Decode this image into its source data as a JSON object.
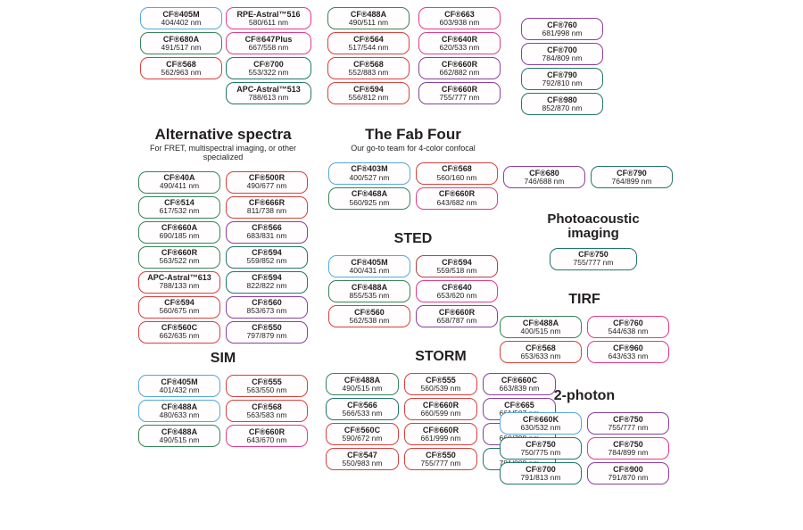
{
  "palette": {
    "blue": "#55a7dd",
    "green": "#37845a",
    "teal": "#22776b",
    "red": "#d8403c",
    "magenta": "#e23a8e",
    "purple": "#8a3f9e",
    "darkred": "#b04040",
    "text": "#231f20",
    "background": "#ffffff"
  },
  "sections": [
    {
      "id": "top_col_1",
      "title": "",
      "subtitle": "",
      "boxes": [
        {
          "name": "CF®405M",
          "value": "404/402 nm",
          "color": "blue"
        },
        {
          "name": "CF®680A",
          "value": "491/517 nm",
          "color": "green"
        },
        {
          "name": "CF®568",
          "value": "562/963 nm",
          "color": "red"
        }
      ]
    },
    {
      "id": "top_col_2",
      "title": "",
      "subtitle": "",
      "boxes": [
        {
          "name": "RPE-Astral™516",
          "value": "580/611 nm",
          "color": "magenta"
        },
        {
          "name": "CF®647Plus",
          "value": "667/558 nm",
          "color": "magenta"
        },
        {
          "name": "CF®700",
          "value": "553/322 nm",
          "color": "teal"
        },
        {
          "name": "APC-Astral™513",
          "value": "788/613 nm",
          "color": "teal"
        }
      ]
    },
    {
      "id": "top_col_3",
      "title": "",
      "subtitle": "",
      "boxes": [
        {
          "name": "CF®488A",
          "value": "490/511 nm",
          "color": "green"
        },
        {
          "name": "CF®564",
          "value": "517/544 nm",
          "color": "red"
        },
        {
          "name": "CF®568",
          "value": "552/883 nm",
          "color": "red"
        },
        {
          "name": "CF®594",
          "value": "556/812 nm",
          "color": "red"
        }
      ]
    },
    {
      "id": "top_col_4",
      "title": "",
      "subtitle": "",
      "boxes": [
        {
          "name": "CF®663",
          "value": "603/938 nm",
          "color": "magenta"
        },
        {
          "name": "CF®640R",
          "value": "620/533 nm",
          "color": "magenta"
        },
        {
          "name": "CF®660R",
          "value": "662/882 nm",
          "color": "purple"
        },
        {
          "name": "CF®660R",
          "value": "755/777 nm",
          "color": "purple"
        }
      ]
    },
    {
      "id": "top_col_5",
      "title": "",
      "subtitle": "",
      "boxes": [
        {
          "name": "CF®760",
          "value": "681/998 nm",
          "color": "purple"
        },
        {
          "name": "CF®700",
          "value": "784/809 nm",
          "color": "purple"
        },
        {
          "name": "CF®790",
          "value": "792/810 nm",
          "color": "teal"
        },
        {
          "name": "CF®980",
          "value": "852/870 nm",
          "color": "teal"
        }
      ]
    },
    {
      "id": "alt_spectra",
      "title": "Alternative spectra",
      "subtitle": "For FRET, multispectral imaging, or other specialized",
      "boxes": [
        {
          "name": "CF®40A",
          "value": "490/411 nm",
          "color": "green"
        },
        {
          "name": "CF®500R",
          "value": "490/677 nm",
          "color": "red"
        },
        {
          "name": "CF®514",
          "value": "617/532 nm",
          "color": "green"
        },
        {
          "name": "CF®666R",
          "value": "811/738 nm",
          "color": "red"
        },
        {
          "name": "CF®660A",
          "value": "690/185 nm",
          "color": "green"
        },
        {
          "name": "CF®566",
          "value": "683/831 nm",
          "color": "purple"
        },
        {
          "name": "CF®660R",
          "value": "563/522 nm",
          "color": "green"
        },
        {
          "name": "CF®594",
          "value": "559/852 nm",
          "color": "teal"
        },
        {
          "name": "APC-Astral™613",
          "value": "788/133 nm",
          "color": "red"
        },
        {
          "name": "CF®594",
          "value": "822/822 nm",
          "color": "teal"
        },
        {
          "name": "CF®594",
          "value": "560/675 nm",
          "color": "red"
        },
        {
          "name": "CF®560",
          "value": "853/673 nm",
          "color": "purple"
        },
        {
          "name": "CF®560C",
          "value": "662/635 nm",
          "color": "red"
        },
        {
          "name": "CF®550",
          "value": "797/879 nm",
          "color": "purple"
        }
      ]
    },
    {
      "id": "fab_four",
      "title": "The Fab Four",
      "subtitle": "Our go-to team for 4-color confocal",
      "boxes": [
        {
          "name": "CF®403M",
          "value": "400/527 nm",
          "color": "blue"
        },
        {
          "name": "CF®568",
          "value": "560/160 nm",
          "color": "red"
        },
        {
          "name": "CF®468A",
          "value": "560/925 nm",
          "color": "green"
        },
        {
          "name": "CF®660R",
          "value": "643/682 nm",
          "color": "magenta"
        }
      ]
    },
    {
      "id": "sted",
      "title": "STED",
      "subtitle": "",
      "boxes": [
        {
          "name": "CF®405M",
          "value": "400/431 nm",
          "color": "blue"
        },
        {
          "name": "CF®594",
          "value": "559/518 nm",
          "color": "darkred"
        },
        {
          "name": "CF®488A",
          "value": "855/535 nm",
          "color": "green"
        },
        {
          "name": "CF®640",
          "value": "653/620 nm",
          "color": "magenta"
        },
        {
          "name": "CF®560",
          "value": "562/538 nm",
          "color": "red"
        },
        {
          "name": "CF®660R",
          "value": "658/787 nm",
          "color": "purple"
        }
      ]
    },
    {
      "id": "sim",
      "title": "SIM",
      "subtitle": "",
      "boxes": [
        {
          "name": "CF®405M",
          "value": "401/432 nm",
          "color": "blue"
        },
        {
          "name": "CF®555",
          "value": "563/550 nm",
          "color": "red"
        },
        {
          "name": "CF®488A",
          "value": "480/633 nm",
          "color": "blue"
        },
        {
          "name": "CF®568",
          "value": "563/583 nm",
          "color": "red"
        },
        {
          "name": "CF®488A",
          "value": "490/515 nm",
          "color": "green"
        },
        {
          "name": "CF®660R",
          "value": "643/670 nm",
          "color": "magenta"
        }
      ]
    },
    {
      "id": "storm",
      "title": "STORM",
      "subtitle": "",
      "boxes": [
        {
          "name": "CF®488A",
          "value": "490/515 nm",
          "color": "green"
        },
        {
          "name": "CF®555",
          "value": "560/539 nm",
          "color": "red"
        },
        {
          "name": "CF®660C",
          "value": "663/839 nm",
          "color": "purple"
        },
        {
          "name": "CF®566",
          "value": "566/533 nm",
          "color": "teal"
        },
        {
          "name": "CF®660R",
          "value": "660/599 nm",
          "color": "red"
        },
        {
          "name": "CF®665",
          "value": "661/507 nm",
          "color": "purple"
        },
        {
          "name": "CF®560C",
          "value": "590/672 nm",
          "color": "red"
        },
        {
          "name": "CF®660R",
          "value": "661/999 nm",
          "color": "red"
        },
        {
          "name": "CF®750",
          "value": "660/799 nm",
          "color": "purple"
        },
        {
          "name": "CF®547",
          "value": "550/983 nm",
          "color": "red"
        },
        {
          "name": "CF®550",
          "value": "755/777 nm",
          "color": "red"
        },
        {
          "name": "CF®770",
          "value": "781/009 nm",
          "color": "teal"
        }
      ]
    },
    {
      "id": "right_pair",
      "title": "",
      "subtitle": "",
      "boxes": [
        {
          "name": "CF®680",
          "value": "746/688 nm",
          "color": "purple"
        },
        {
          "name": "CF®790",
          "value": "764/899 nm",
          "color": "teal"
        }
      ]
    },
    {
      "id": "photoacoustic",
      "title": "Photoacoustic imaging",
      "subtitle": "",
      "boxes": [
        {
          "name": "CF®750",
          "value": "755/777 nm",
          "color": "teal"
        }
      ]
    },
    {
      "id": "tirf",
      "title": "TIRF",
      "subtitle": "",
      "boxes": [
        {
          "name": "CF®488A",
          "value": "400/515 nm",
          "color": "green"
        },
        {
          "name": "CF®760",
          "value": "544/638 nm",
          "color": "magenta"
        },
        {
          "name": "CF®568",
          "value": "653/633 nm",
          "color": "red"
        },
        {
          "name": "CF®960",
          "value": "643/633 nm",
          "color": "magenta"
        }
      ]
    },
    {
      "id": "two_photon",
      "title": "2-photon",
      "subtitle": "",
      "boxes": [
        {
          "name": "CF®660K",
          "value": "630/532 nm",
          "color": "blue"
        },
        {
          "name": "CF®750",
          "value": "755/777 nm",
          "color": "purple"
        },
        {
          "name": "CF®750",
          "value": "750/775 nm",
          "color": "teal"
        },
        {
          "name": "CF®750",
          "value": "784/899 nm",
          "color": "magenta"
        },
        {
          "name": "CF®700",
          "value": "791/813 nm",
          "color": "teal"
        },
        {
          "name": "CF®900",
          "value": "791/870 nm",
          "color": "purple"
        }
      ]
    }
  ]
}
